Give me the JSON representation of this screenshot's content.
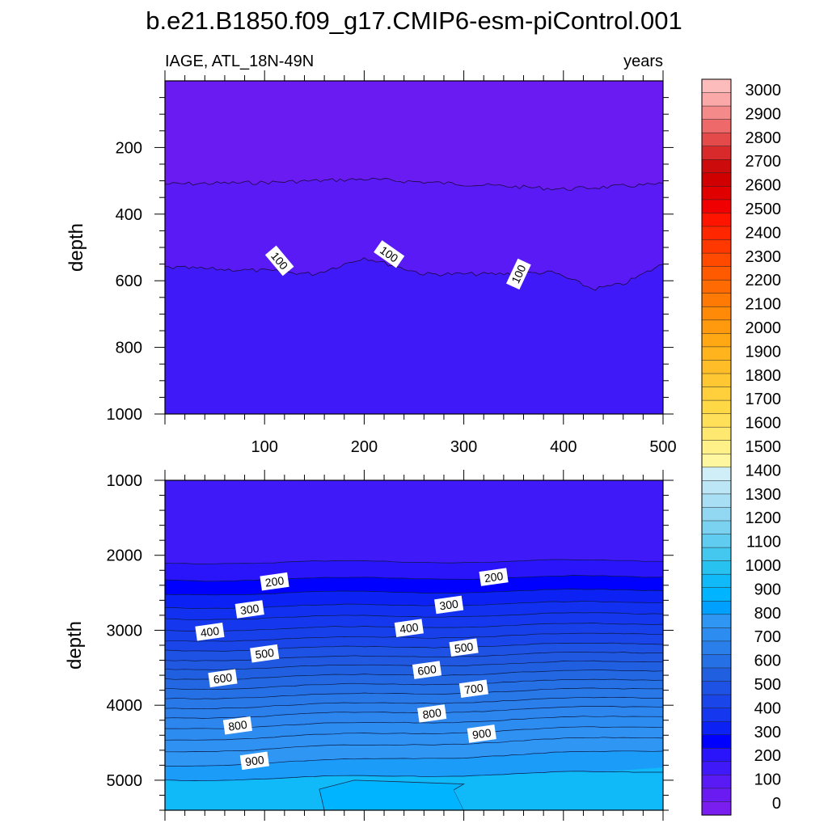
{
  "title": "b.e21.B1850.f09_g17.CMIP6-esm-piControl.001",
  "chart_data": [
    {
      "type": "heatmap",
      "panel": "upper",
      "left_string": "IAGE, ATL_18N-49N",
      "right_string": "years",
      "ylabel": "depth",
      "xlim": [
        0,
        500
      ],
      "ylim": [
        0,
        1000
      ],
      "y_reversed": true,
      "xticks": [
        100,
        200,
        300,
        400,
        500
      ],
      "xtick_labels": [
        "100",
        "200",
        "300",
        "400",
        "500"
      ],
      "yticks": [
        200,
        400,
        600,
        800,
        1000
      ],
      "ytick_labels": [
        "200",
        "400",
        "600",
        "800",
        "1000"
      ],
      "bands": [
        {
          "from": 0,
          "to": 310,
          "color": "#6a1bf2"
        },
        {
          "from": 310,
          "to": 570,
          "color": "#5a1af6"
        },
        {
          "from": 570,
          "to": 1000,
          "color": "#3f19f8"
        }
      ],
      "contour_lines": [
        {
          "base_depth": 310,
          "wave": [
            [
              0,
              0
            ],
            [
              100,
              -5
            ],
            [
              200,
              -15
            ],
            [
              300,
              0
            ],
            [
              400,
              15
            ],
            [
              500,
              0
            ]
          ]
        },
        {
          "base_depth": 570,
          "wave": [
            [
              0,
              -10
            ],
            [
              100,
              0
            ],
            [
              150,
              10
            ],
            [
              200,
              -40
            ],
            [
              260,
              10
            ],
            [
              330,
              10
            ],
            [
              390,
              5
            ],
            [
              430,
              55
            ],
            [
              460,
              40
            ],
            [
              500,
              -20
            ]
          ]
        }
      ],
      "contour_labels": [
        {
          "text": "100",
          "x": 115,
          "depth": 540,
          "angle": 50
        },
        {
          "text": "100",
          "x": 225,
          "depth": 520,
          "angle": 35
        },
        {
          "text": "100",
          "x": 355,
          "depth": 580,
          "angle": -65
        }
      ]
    },
    {
      "type": "heatmap",
      "panel": "lower",
      "ylabel": "depth",
      "xlim": [
        0,
        500
      ],
      "ylim": [
        1000,
        5400
      ],
      "y_reversed": true,
      "yticks": [
        1000,
        2000,
        3000,
        4000,
        5000
      ],
      "ytick_labels": [
        "1000",
        "2000",
        "3000",
        "4000",
        "5000"
      ],
      "contour_labels": [
        {
          "text": "200",
          "x": 110,
          "depth": 2350
        },
        {
          "text": "200",
          "x": 330,
          "depth": 2290
        },
        {
          "text": "300",
          "x": 85,
          "depth": 2720
        },
        {
          "text": "300",
          "x": 285,
          "depth": 2660
        },
        {
          "text": "400",
          "x": 45,
          "depth": 3020
        },
        {
          "text": "400",
          "x": 245,
          "depth": 2970
        },
        {
          "text": "500",
          "x": 100,
          "depth": 3310
        },
        {
          "text": "500",
          "x": 300,
          "depth": 3230
        },
        {
          "text": "600",
          "x": 58,
          "depth": 3640
        },
        {
          "text": "600",
          "x": 263,
          "depth": 3530
        },
        {
          "text": "700",
          "x": 310,
          "depth": 3780
        },
        {
          "text": "800",
          "x": 73,
          "depth": 4270
        },
        {
          "text": "800",
          "x": 268,
          "depth": 4110
        },
        {
          "text": "900",
          "x": 90,
          "depth": 4740
        },
        {
          "text": "900",
          "x": 318,
          "depth": 4380
        }
      ]
    }
  ],
  "colorbar": {
    "labels": [
      "0",
      "100",
      "200",
      "300",
      "400",
      "500",
      "600",
      "700",
      "800",
      "900",
      "1000",
      "1100",
      "1200",
      "1300",
      "1400",
      "1500",
      "1600",
      "1700",
      "1800",
      "1900",
      "2000",
      "2100",
      "2200",
      "2300",
      "2400",
      "2500",
      "2600",
      "2700",
      "2800",
      "2900",
      "3000"
    ],
    "colors": [
      "#7a1ef0",
      "#6a1bf2",
      "#5a1af6",
      "#3f19f8",
      "#2a14fa",
      "#0000ff",
      "#0c22f5",
      "#1538ee",
      "#1a45e8",
      "#1d52e4",
      "#2060e0",
      "#2570e4",
      "#2a7fea",
      "#2d8cef",
      "#2f96f3",
      "#00a0ff",
      "#00b4ff",
      "#10baf8",
      "#28c2f0",
      "#45c8f0",
      "#60ccf0",
      "#7bd2f0",
      "#92d8f2",
      "#a8dff4",
      "#bce6f6",
      "#cfeef8",
      "#fff7a0",
      "#fff088",
      "#ffe870",
      "#ffe058",
      "#ffd846",
      "#ffd03c",
      "#ffc832",
      "#ffbe28",
      "#ffb41e",
      "#ffa814",
      "#ff9a0e",
      "#ff8a08",
      "#ff7a04",
      "#ff6a02",
      "#ff5a00",
      "#ff4a00",
      "#ff3800",
      "#ff2600",
      "#ff1400",
      "#f00000",
      "#e00000",
      "#d00000",
      "#cc0c0c",
      "#d82a2a",
      "#e44a4a",
      "#ee6a6a",
      "#f58a8a",
      "#faa8a8",
      "#fdbcbc"
    ]
  }
}
